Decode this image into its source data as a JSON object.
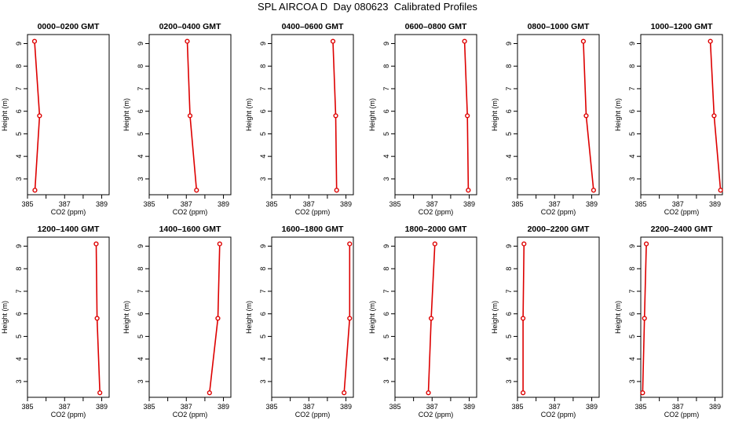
{
  "figure": {
    "title": "SPL AIRCOA D  Day 080623  Calibrated Profiles"
  },
  "colors": {
    "profile": "#dd0000",
    "axes": "#000000"
  },
  "chart_data": [
    {
      "type": "line",
      "title": "0000–0200 GMT",
      "xlabel": "CO2 (ppm)",
      "ylabel": "Height (m)",
      "xlim": [
        385,
        389.4
      ],
      "ylim": [
        2.3,
        9.4
      ],
      "xticks": [
        385,
        386,
        387,
        388,
        389
      ],
      "xtick_labels": [
        "385",
        "",
        "387",
        "",
        "389"
      ],
      "yticks": [
        3,
        4,
        5,
        6,
        7,
        8,
        9
      ],
      "ytick_labels": [
        "3",
        "4",
        "5",
        "6",
        "7",
        "8",
        "9"
      ],
      "series": [
        {
          "x": [
            385.4,
            385.65,
            385.38
          ],
          "y": [
            2.5,
            5.8,
            9.1
          ]
        }
      ]
    },
    {
      "type": "line",
      "title": "0200–0400 GMT",
      "xlabel": "CO2 (ppm)",
      "ylabel": "Height (m)",
      "xlim": [
        385,
        389.4
      ],
      "ylim": [
        2.3,
        9.4
      ],
      "xticks": [
        385,
        386,
        387,
        388,
        389
      ],
      "xtick_labels": [
        "385",
        "",
        "387",
        "",
        "389"
      ],
      "yticks": [
        3,
        4,
        5,
        6,
        7,
        8,
        9
      ],
      "ytick_labels": [
        "3",
        "4",
        "5",
        "6",
        "7",
        "8",
        "9"
      ],
      "series": [
        {
          "x": [
            387.55,
            387.2,
            387.05
          ],
          "y": [
            2.5,
            5.8,
            9.1
          ]
        }
      ]
    },
    {
      "type": "line",
      "title": "0400–0600 GMT",
      "xlabel": "CO2 (ppm)",
      "ylabel": "Height (m)",
      "xlim": [
        385,
        389.4
      ],
      "ylim": [
        2.3,
        9.4
      ],
      "xticks": [
        385,
        386,
        387,
        388,
        389
      ],
      "xtick_labels": [
        "385",
        "",
        "387",
        "",
        "389"
      ],
      "yticks": [
        3,
        4,
        5,
        6,
        7,
        8,
        9
      ],
      "ytick_labels": [
        "3",
        "4",
        "5",
        "6",
        "7",
        "8",
        "9"
      ],
      "series": [
        {
          "x": [
            388.5,
            388.45,
            388.3
          ],
          "y": [
            2.5,
            5.8,
            9.1
          ]
        }
      ]
    },
    {
      "type": "line",
      "title": "0600–0800 GMT",
      "xlabel": "CO2 (ppm)",
      "ylabel": "Height (m)",
      "xlim": [
        385,
        389.4
      ],
      "ylim": [
        2.3,
        9.4
      ],
      "xticks": [
        385,
        386,
        387,
        388,
        389
      ],
      "xtick_labels": [
        "385",
        "",
        "387",
        "",
        "389"
      ],
      "yticks": [
        3,
        4,
        5,
        6,
        7,
        8,
        9
      ],
      "ytick_labels": [
        "3",
        "4",
        "5",
        "6",
        "7",
        "8",
        "9"
      ],
      "series": [
        {
          "x": [
            388.95,
            388.9,
            388.75
          ],
          "y": [
            2.5,
            5.8,
            9.1
          ]
        }
      ]
    },
    {
      "type": "line",
      "title": "0800–1000 GMT",
      "xlabel": "CO2 (ppm)",
      "ylabel": "Height (m)",
      "xlim": [
        385,
        389.4
      ],
      "ylim": [
        2.3,
        9.4
      ],
      "xticks": [
        385,
        386,
        387,
        388,
        389
      ],
      "xtick_labels": [
        "385",
        "",
        "387",
        "",
        "389"
      ],
      "yticks": [
        3,
        4,
        5,
        6,
        7,
        8,
        9
      ],
      "ytick_labels": [
        "3",
        "4",
        "5",
        "6",
        "7",
        "8",
        "9"
      ],
      "series": [
        {
          "x": [
            389.1,
            388.7,
            388.55
          ],
          "y": [
            2.5,
            5.8,
            9.1
          ]
        }
      ]
    },
    {
      "type": "line",
      "title": "1000–1200 GMT",
      "xlabel": "CO2 (ppm)",
      "ylabel": "Height (m)",
      "xlim": [
        385,
        389.4
      ],
      "ylim": [
        2.3,
        9.4
      ],
      "xticks": [
        385,
        386,
        387,
        388,
        389
      ],
      "xtick_labels": [
        "385",
        "",
        "387",
        "",
        "389"
      ],
      "yticks": [
        3,
        4,
        5,
        6,
        7,
        8,
        9
      ],
      "ytick_labels": [
        "3",
        "4",
        "5",
        "6",
        "7",
        "8",
        "9"
      ],
      "series": [
        {
          "x": [
            389.3,
            388.95,
            388.75
          ],
          "y": [
            2.5,
            5.8,
            9.1
          ]
        }
      ]
    },
    {
      "type": "line",
      "title": "1200–1400 GMT",
      "xlabel": "CO2 (ppm)",
      "ylabel": "Height (m)",
      "xlim": [
        385,
        389.4
      ],
      "ylim": [
        2.3,
        9.4
      ],
      "xticks": [
        385,
        386,
        387,
        388,
        389
      ],
      "xtick_labels": [
        "385",
        "",
        "387",
        "",
        "389"
      ],
      "yticks": [
        3,
        4,
        5,
        6,
        7,
        8,
        9
      ],
      "ytick_labels": [
        "3",
        "4",
        "5",
        "6",
        "7",
        "8",
        "9"
      ],
      "series": [
        {
          "x": [
            388.9,
            388.75,
            388.7
          ],
          "y": [
            2.5,
            5.8,
            9.1
          ]
        }
      ]
    },
    {
      "type": "line",
      "title": "1400–1600 GMT",
      "xlabel": "CO2 (ppm)",
      "ylabel": "Height (m)",
      "xlim": [
        385,
        389.4
      ],
      "ylim": [
        2.3,
        9.4
      ],
      "xticks": [
        385,
        386,
        387,
        388,
        389
      ],
      "xtick_labels": [
        "385",
        "",
        "387",
        "",
        "389"
      ],
      "yticks": [
        3,
        4,
        5,
        6,
        7,
        8,
        9
      ],
      "ytick_labels": [
        "3",
        "4",
        "5",
        "6",
        "7",
        "8",
        "9"
      ],
      "series": [
        {
          "x": [
            388.25,
            388.7,
            388.8
          ],
          "y": [
            2.5,
            5.8,
            9.1
          ]
        }
      ]
    },
    {
      "type": "line",
      "title": "1600–1800 GMT",
      "xlabel": "CO2 (ppm)",
      "ylabel": "Height (m)",
      "xlim": [
        385,
        389.4
      ],
      "ylim": [
        2.3,
        9.4
      ],
      "xticks": [
        385,
        386,
        387,
        388,
        389
      ],
      "xtick_labels": [
        "385",
        "",
        "387",
        "",
        "389"
      ],
      "yticks": [
        3,
        4,
        5,
        6,
        7,
        8,
        9
      ],
      "ytick_labels": [
        "3",
        "4",
        "5",
        "6",
        "7",
        "8",
        "9"
      ],
      "series": [
        {
          "x": [
            388.9,
            389.2,
            389.2
          ],
          "y": [
            2.5,
            5.8,
            9.1
          ]
        }
      ]
    },
    {
      "type": "line",
      "title": "1800–2000 GMT",
      "xlabel": "CO2 (ppm)",
      "ylabel": "Height (m)",
      "xlim": [
        385,
        389.4
      ],
      "ylim": [
        2.3,
        9.4
      ],
      "xticks": [
        385,
        386,
        387,
        388,
        389
      ],
      "xtick_labels": [
        "385",
        "",
        "387",
        "",
        "389"
      ],
      "yticks": [
        3,
        4,
        5,
        6,
        7,
        8,
        9
      ],
      "ytick_labels": [
        "3",
        "4",
        "5",
        "6",
        "7",
        "8",
        "9"
      ],
      "series": [
        {
          "x": [
            386.8,
            386.95,
            387.15
          ],
          "y": [
            2.5,
            5.8,
            9.1
          ]
        }
      ]
    },
    {
      "type": "line",
      "title": "2000–2200 GMT",
      "xlabel": "CO2 (ppm)",
      "ylabel": "Height (m)",
      "xlim": [
        385,
        389.4
      ],
      "ylim": [
        2.3,
        9.4
      ],
      "xticks": [
        385,
        386,
        387,
        388,
        389
      ],
      "xtick_labels": [
        "385",
        "",
        "387",
        "",
        "389"
      ],
      "yticks": [
        3,
        4,
        5,
        6,
        7,
        8,
        9
      ],
      "ytick_labels": [
        "3",
        "4",
        "5",
        "6",
        "7",
        "8",
        "9"
      ],
      "series": [
        {
          "x": [
            385.3,
            385.3,
            385.35
          ],
          "y": [
            2.5,
            5.8,
            9.1
          ]
        }
      ]
    },
    {
      "type": "line",
      "title": "2200–2400 GMT",
      "xlabel": "CO2 (ppm)",
      "ylabel": "Height (m)",
      "xlim": [
        385,
        389.4
      ],
      "ylim": [
        2.3,
        9.4
      ],
      "xticks": [
        385,
        386,
        387,
        388,
        389
      ],
      "xtick_labels": [
        "385",
        "",
        "387",
        "",
        "389"
      ],
      "yticks": [
        3,
        4,
        5,
        6,
        7,
        8,
        9
      ],
      "ytick_labels": [
        "3",
        "4",
        "5",
        "6",
        "7",
        "8",
        "9"
      ],
      "series": [
        {
          "x": [
            385.1,
            385.2,
            385.3
          ],
          "y": [
            2.5,
            5.8,
            9.1
          ]
        }
      ]
    }
  ]
}
